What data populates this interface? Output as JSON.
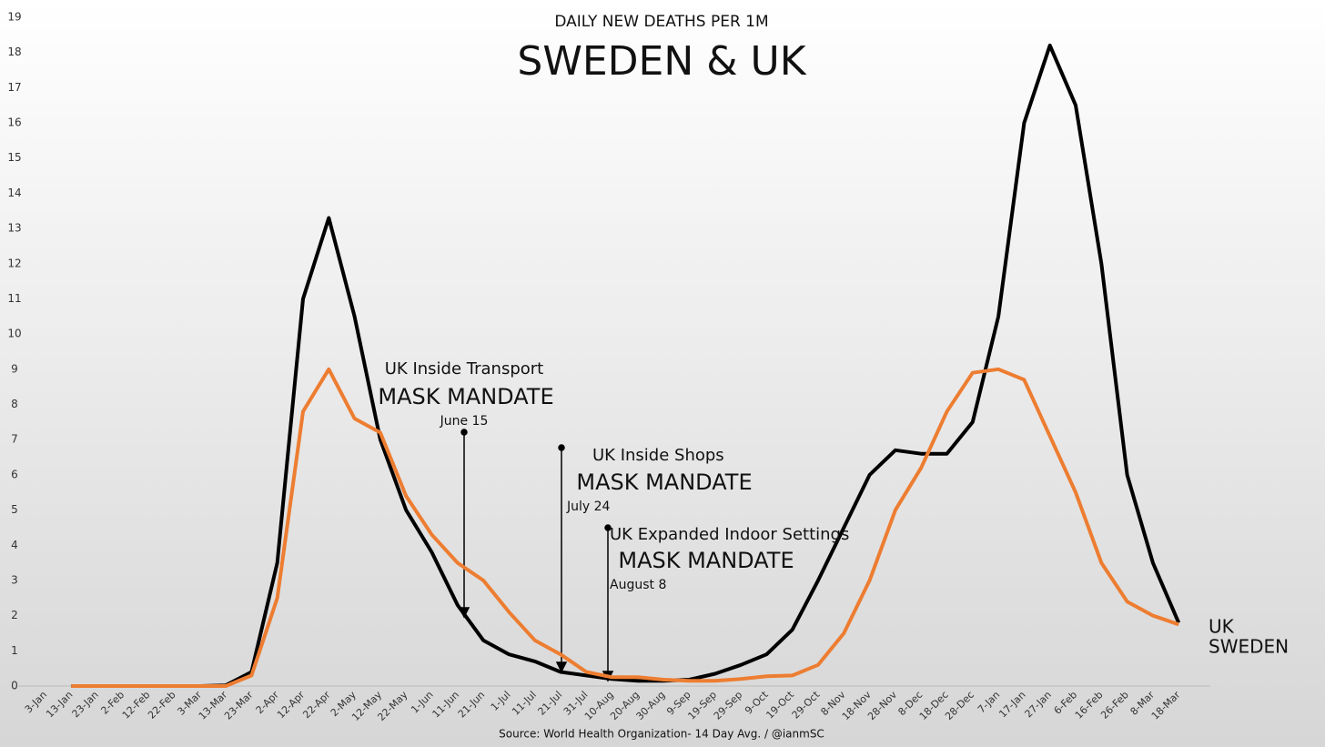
{
  "chart_data": {
    "type": "line",
    "subtitle": "DAILY NEW DEATHS PER 1M",
    "title": "SWEDEN & UK",
    "source": "Source: World Health Organization- 14 Day Avg. / @ianmSC",
    "categories": [
      "3-Jan",
      "13-Jan",
      "23-Jan",
      "2-Feb",
      "12-Feb",
      "22-Feb",
      "3-Mar",
      "13-Mar",
      "23-Mar",
      "2-Apr",
      "12-Apr",
      "22-Apr",
      "2-May",
      "12-May",
      "22-May",
      "1-Jun",
      "11-Jun",
      "21-Jun",
      "1-Jul",
      "11-Jul",
      "21-Jul",
      "31-Jul",
      "10-Aug",
      "20-Aug",
      "30-Aug",
      "9-Sep",
      "19-Sep",
      "29-Sep",
      "9-Oct",
      "19-Oct",
      "29-Oct",
      "8-Nov",
      "18-Nov",
      "28-Nov",
      "8-Dec",
      "18-Dec",
      "28-Dec",
      "7-Jan",
      "17-Jan",
      "27-Jan",
      "6-Feb",
      "16-Feb",
      "26-Feb",
      "8-Mar",
      "18-Mar"
    ],
    "series": [
      {
        "name": "UK",
        "color": "#000000",
        "values": [
          null,
          0,
          0,
          0,
          0,
          0,
          0,
          0.02,
          0.4,
          3.5,
          11,
          13.3,
          10.5,
          7,
          5,
          3.8,
          2.3,
          1.3,
          0.9,
          0.7,
          0.4,
          0.3,
          0.2,
          0.15,
          0.15,
          0.18,
          0.35,
          0.6,
          0.9,
          1.6,
          3,
          4.5,
          6,
          6.7,
          6.6,
          6.6,
          7.5,
          10.5,
          16,
          18.2,
          16.5,
          12,
          6,
          3.5,
          1.8
        ]
      },
      {
        "name": "SWEDEN",
        "color": "#ed7d31",
        "values": [
          null,
          0,
          0,
          0,
          0,
          0,
          0,
          0,
          0.3,
          2.5,
          7.8,
          9,
          7.6,
          7.2,
          5.4,
          4.3,
          3.5,
          3,
          2.1,
          1.3,
          0.9,
          0.4,
          0.25,
          0.25,
          0.18,
          0.15,
          0.15,
          0.2,
          0.28,
          0.3,
          0.6,
          1.5,
          3,
          5,
          6.2,
          7.8,
          8.9,
          9,
          8.7,
          7.1,
          5.5,
          3.5,
          2.4,
          2,
          1.75
        ]
      }
    ],
    "annotations": [
      {
        "text": "UK Inside Transport",
        "label": "MASK MANDATE",
        "date": "June 15"
      },
      {
        "text": "UK Inside Shops",
        "label": "MASK MANDATE",
        "date": "July 24"
      },
      {
        "text": "UK Expanded Indoor Settings",
        "label": "MASK MANDATE",
        "date": "August 8"
      }
    ],
    "ylim": [
      0,
      19
    ],
    "yticks": [
      0,
      1,
      2,
      3,
      4,
      5,
      6,
      7,
      8,
      9,
      10,
      11,
      12,
      13,
      14,
      15,
      16,
      17,
      18,
      19
    ],
    "grid": false
  }
}
